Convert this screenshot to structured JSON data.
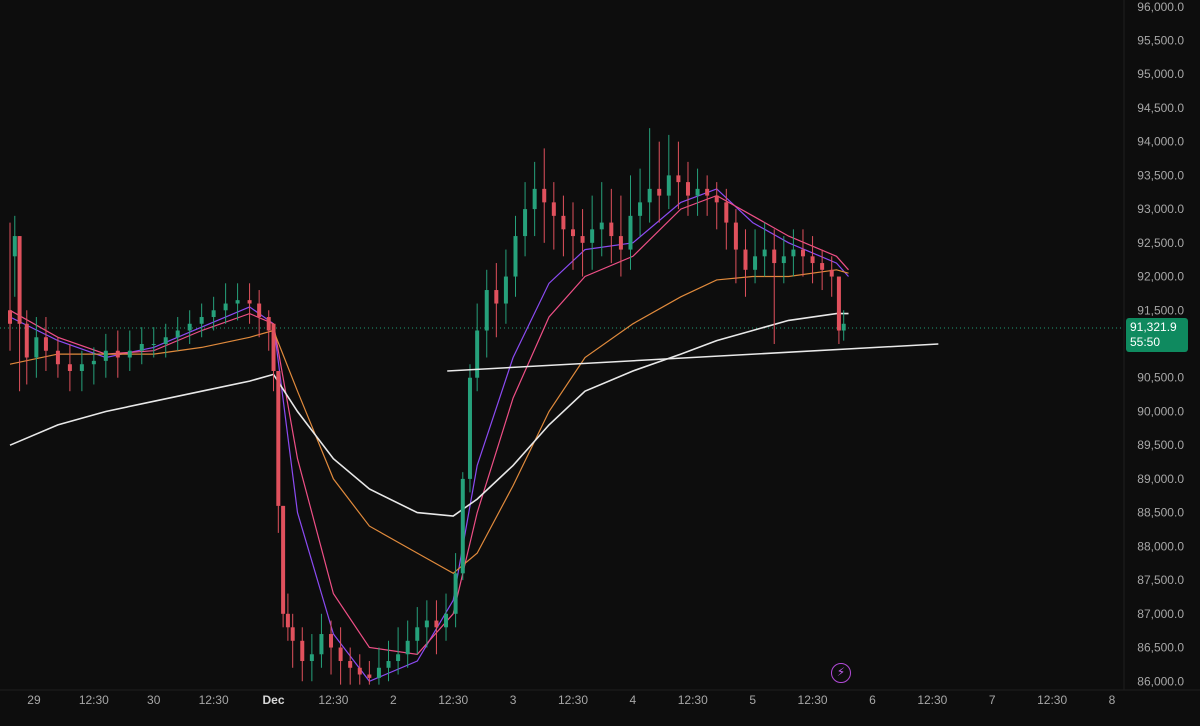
{
  "colors": {
    "background": "#0d0d0d",
    "up_candle": "#26a17b",
    "down_candle": "#e0515d",
    "ma_purple": "#8b4bf2",
    "ma_pink": "#ee4f86",
    "ma_orange": "#e08a3c",
    "ma_white": "#e8e8e8",
    "trendline": "#e9e9e9",
    "price_tag": "#0f8a5f",
    "current_price_line": "#1f9c74",
    "axis_text": "#a7a7a7"
  },
  "icons": {
    "flash": "lightning-bolt-icon"
  },
  "current_price": {
    "price": "91,321.9",
    "countdown": "55:50"
  },
  "chart_data": {
    "type": "candlestick",
    "title": "",
    "xlabel": "",
    "ylabel": "",
    "grid": false,
    "x_tick_labels": [
      "29",
      "12:30",
      "30",
      "12:30",
      "Dec",
      "12:30",
      "2",
      "12:30",
      "3",
      "12:30",
      "4",
      "12:30",
      "5",
      "12:30",
      "6",
      "12:30",
      "7",
      "12:30",
      "8"
    ],
    "y_tick_labels": [
      "96,000.0",
      "95,500.0",
      "95,000.0",
      "94,500.0",
      "94,000.0",
      "93,500.0",
      "93,000.0",
      "92,500.0",
      "92,000.0",
      "91,500.0",
      "91,000.0",
      "90,500.0",
      "90,000.0",
      "89,500.0",
      "89,000.0",
      "88,500.0",
      "88,000.0",
      "87,500.0",
      "87,000.0",
      "86,500.0",
      "86,000.0"
    ],
    "ylim": [
      85900,
      96100
    ],
    "xlim": [
      0,
      9.3
    ],
    "x_ticks": [
      0.2,
      0.7,
      1.2,
      1.7,
      2.2,
      2.7,
      3.2,
      3.7,
      4.2,
      4.7,
      5.2,
      5.7,
      6.2,
      6.7,
      7.2,
      7.7,
      8.2,
      8.7,
      9.2
    ],
    "ohlc_anchors": [
      [
        0.0,
        91500,
        91300,
        92800,
        90900
      ],
      [
        0.04,
        92300,
        92600,
        92900,
        91700
      ],
      [
        0.08,
        92600,
        91300,
        92600,
        90300
      ],
      [
        0.14,
        91300,
        90800,
        91500,
        90400
      ],
      [
        0.22,
        90800,
        91100,
        91400,
        90500
      ],
      [
        0.3,
        91100,
        90900,
        91400,
        90600
      ],
      [
        0.4,
        90900,
        90700,
        91100,
        90500
      ],
      [
        0.5,
        90700,
        90600,
        91000,
        90300
      ],
      [
        0.6,
        90600,
        90700,
        90900,
        90300
      ],
      [
        0.7,
        90700,
        90750,
        90950,
        90400
      ],
      [
        0.8,
        90750,
        90900,
        91150,
        90500
      ],
      [
        0.9,
        90900,
        90800,
        91200,
        90500
      ],
      [
        1.0,
        90800,
        90900,
        91200,
        90600
      ],
      [
        1.1,
        90900,
        91000,
        91250,
        90700
      ],
      [
        1.2,
        91000,
        91000,
        91250,
        90800
      ],
      [
        1.3,
        91000,
        91100,
        91300,
        90800
      ],
      [
        1.4,
        91100,
        91200,
        91400,
        90900
      ],
      [
        1.5,
        91200,
        91300,
        91500,
        91000
      ],
      [
        1.6,
        91300,
        91400,
        91600,
        91100
      ],
      [
        1.7,
        91400,
        91500,
        91700,
        91200
      ],
      [
        1.8,
        91500,
        91600,
        91900,
        91300
      ],
      [
        1.9,
        91600,
        91650,
        91900,
        91350
      ],
      [
        2.0,
        91650,
        91600,
        91900,
        91300
      ],
      [
        2.08,
        91600,
        91400,
        91800,
        91100
      ],
      [
        2.16,
        91400,
        91200,
        91500,
        90900
      ],
      [
        2.2,
        91300,
        90600,
        91300,
        90300
      ],
      [
        2.24,
        90600,
        88600,
        90600,
        88200
      ],
      [
        2.28,
        88600,
        87000,
        88600,
        86800
      ],
      [
        2.32,
        87000,
        86800,
        87300,
        86600
      ],
      [
        2.36,
        86800,
        86600,
        87000,
        86200
      ],
      [
        2.44,
        86600,
        86300,
        86800,
        86000
      ],
      [
        2.52,
        86300,
        86400,
        86700,
        86000
      ],
      [
        2.6,
        86400,
        86700,
        87000,
        86200
      ],
      [
        2.68,
        86700,
        86500,
        86900,
        86100
      ],
      [
        2.76,
        86500,
        86300,
        86800,
        85950
      ],
      [
        2.84,
        86300,
        86200,
        86500,
        85950
      ],
      [
        2.92,
        86200,
        86100,
        86400,
        85950
      ],
      [
        3.0,
        86100,
        86050,
        86300,
        85950
      ],
      [
        3.08,
        86050,
        86200,
        86500,
        85950
      ],
      [
        3.16,
        86200,
        86300,
        86600,
        86000
      ],
      [
        3.24,
        86300,
        86400,
        86800,
        86100
      ],
      [
        3.32,
        86400,
        86600,
        86900,
        86200
      ],
      [
        3.4,
        86600,
        86800,
        87100,
        86400
      ],
      [
        3.48,
        86800,
        86900,
        87200,
        86500
      ],
      [
        3.56,
        86900,
        86800,
        87200,
        86400
      ],
      [
        3.64,
        86800,
        87000,
        87300,
        86600
      ],
      [
        3.72,
        87000,
        87600,
        87900,
        86800
      ],
      [
        3.78,
        87600,
        89000,
        89100,
        87500
      ],
      [
        3.84,
        89000,
        90500,
        90700,
        88800
      ],
      [
        3.9,
        90500,
        91200,
        91600,
        90300
      ],
      [
        3.98,
        91200,
        91800,
        92100,
        90800
      ],
      [
        4.06,
        91800,
        91600,
        92200,
        91100
      ],
      [
        4.14,
        91600,
        92000,
        92400,
        91300
      ],
      [
        4.22,
        92000,
        92600,
        92900,
        91700
      ],
      [
        4.3,
        92600,
        93000,
        93400,
        92300
      ],
      [
        4.38,
        93000,
        93300,
        93700,
        92600
      ],
      [
        4.46,
        93300,
        93100,
        93900,
        92500
      ],
      [
        4.54,
        93100,
        92900,
        93400,
        92400
      ],
      [
        4.62,
        92900,
        92700,
        93200,
        92300
      ],
      [
        4.7,
        92700,
        92600,
        93100,
        92100
      ],
      [
        4.78,
        92600,
        92500,
        93000,
        92000
      ],
      [
        4.86,
        92500,
        92700,
        93200,
        92100
      ],
      [
        4.94,
        92700,
        92800,
        93400,
        92300
      ],
      [
        5.02,
        92800,
        92600,
        93300,
        92200
      ],
      [
        5.1,
        92600,
        92400,
        93200,
        92000
      ],
      [
        5.18,
        92400,
        92900,
        93500,
        92100
      ],
      [
        5.26,
        92900,
        93100,
        93600,
        92600
      ],
      [
        5.34,
        93100,
        93300,
        94200,
        92800
      ],
      [
        5.42,
        93300,
        93200,
        94000,
        92800
      ],
      [
        5.5,
        93200,
        93500,
        94100,
        93000
      ],
      [
        5.58,
        93500,
        93400,
        94000,
        93000
      ],
      [
        5.66,
        93400,
        93200,
        93700,
        92900
      ],
      [
        5.74,
        93200,
        93300,
        93600,
        92900
      ],
      [
        5.82,
        93300,
        93200,
        93500,
        92900
      ],
      [
        5.9,
        93200,
        93100,
        93400,
        92700
      ],
      [
        5.98,
        93100,
        92800,
        93300,
        92400
      ],
      [
        6.06,
        92800,
        92400,
        93000,
        91900
      ],
      [
        6.14,
        92400,
        92100,
        92700,
        91700
      ],
      [
        6.22,
        92100,
        92300,
        92700,
        91900
      ],
      [
        6.3,
        92300,
        92400,
        92800,
        92000
      ],
      [
        6.38,
        92400,
        92200,
        92700,
        91000
      ],
      [
        6.46,
        92200,
        92300,
        92600,
        91900
      ],
      [
        6.54,
        92300,
        92400,
        92700,
        92000
      ],
      [
        6.62,
        92400,
        92300,
        92700,
        92000
      ],
      [
        6.7,
        92300,
        92200,
        92600,
        91900
      ],
      [
        6.78,
        92200,
        92100,
        92400,
        91800
      ],
      [
        6.86,
        92100,
        92000,
        92300,
        91700
      ],
      [
        6.92,
        92000,
        91200,
        92000,
        91000
      ],
      [
        6.96,
        91200,
        91300,
        91500,
        91050
      ]
    ],
    "series": [
      {
        "values": [
          [
            0.0,
            91400
          ],
          [
            0.4,
            91050
          ],
          [
            0.8,
            90800
          ],
          [
            1.2,
            90950
          ],
          [
            1.6,
            91250
          ],
          [
            2.0,
            91550
          ],
          [
            2.2,
            91300
          ],
          [
            2.4,
            88500
          ],
          [
            2.7,
            86700
          ],
          [
            3.0,
            86000
          ],
          [
            3.4,
            86300
          ],
          [
            3.7,
            87200
          ],
          [
            3.9,
            89200
          ],
          [
            4.2,
            90800
          ],
          [
            4.5,
            91900
          ],
          [
            4.8,
            92400
          ],
          [
            5.2,
            92500
          ],
          [
            5.6,
            93100
          ],
          [
            5.9,
            93300
          ],
          [
            6.2,
            92800
          ],
          [
            6.5,
            92500
          ],
          [
            6.9,
            92200
          ],
          [
            7.0,
            92000
          ]
        ],
        "color": "#8b4bf2"
      },
      {
        "values": [
          [
            0.0,
            91500
          ],
          [
            0.4,
            91100
          ],
          [
            0.8,
            90850
          ],
          [
            1.2,
            90900
          ],
          [
            1.6,
            91200
          ],
          [
            2.0,
            91450
          ],
          [
            2.2,
            91300
          ],
          [
            2.4,
            89300
          ],
          [
            2.7,
            87300
          ],
          [
            3.0,
            86500
          ],
          [
            3.4,
            86400
          ],
          [
            3.7,
            87000
          ],
          [
            3.9,
            88500
          ],
          [
            4.2,
            90200
          ],
          [
            4.5,
            91400
          ],
          [
            4.8,
            92000
          ],
          [
            5.2,
            92300
          ],
          [
            5.6,
            93000
          ],
          [
            5.9,
            93200
          ],
          [
            6.2,
            92900
          ],
          [
            6.5,
            92600
          ],
          [
            6.9,
            92300
          ],
          [
            7.0,
            92100
          ]
        ],
        "color": "#ee4f86"
      },
      {
        "values": [
          [
            0.0,
            90700
          ],
          [
            0.4,
            90850
          ],
          [
            0.8,
            90850
          ],
          [
            1.2,
            90850
          ],
          [
            1.6,
            90950
          ],
          [
            2.0,
            91100
          ],
          [
            2.2,
            91200
          ],
          [
            2.4,
            90300
          ],
          [
            2.7,
            89000
          ],
          [
            3.0,
            88300
          ],
          [
            3.4,
            87900
          ],
          [
            3.7,
            87600
          ],
          [
            3.9,
            87900
          ],
          [
            4.2,
            88900
          ],
          [
            4.5,
            90000
          ],
          [
            4.8,
            90800
          ],
          [
            5.2,
            91300
          ],
          [
            5.6,
            91700
          ],
          [
            5.9,
            91950
          ],
          [
            6.2,
            92000
          ],
          [
            6.5,
            92000
          ],
          [
            6.9,
            92100
          ],
          [
            7.0,
            92050
          ]
        ],
        "color": "#e08a3c"
      },
      {
        "values": [
          [
            0.0,
            89500
          ],
          [
            0.4,
            89800
          ],
          [
            0.8,
            90000
          ],
          [
            1.2,
            90150
          ],
          [
            1.6,
            90300
          ],
          [
            2.0,
            90450
          ],
          [
            2.2,
            90550
          ],
          [
            2.4,
            90000
          ],
          [
            2.7,
            89300
          ],
          [
            3.0,
            88850
          ],
          [
            3.4,
            88500
          ],
          [
            3.7,
            88450
          ],
          [
            3.9,
            88700
          ],
          [
            4.2,
            89200
          ],
          [
            4.5,
            89800
          ],
          [
            4.8,
            90300
          ],
          [
            5.2,
            90600
          ],
          [
            5.6,
            90850
          ],
          [
            5.9,
            91050
          ],
          [
            6.2,
            91200
          ],
          [
            6.5,
            91350
          ],
          [
            6.9,
            91450
          ],
          [
            7.0,
            91450
          ]
        ],
        "color": "#e8e8e8"
      }
    ],
    "trendline": {
      "from": [
        3.65,
        90600
      ],
      "to": [
        7.75,
        91000
      ]
    },
    "current_price": 91321.9
  }
}
